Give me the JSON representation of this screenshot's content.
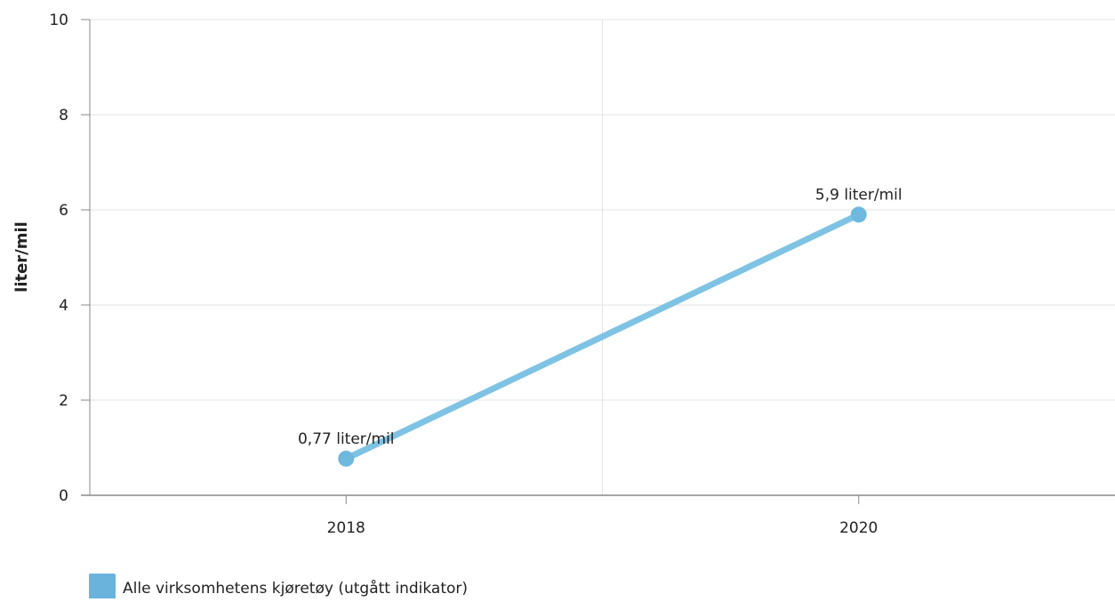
{
  "chart_data": {
    "type": "line",
    "title": "",
    "xlabel": "",
    "ylabel": "liter/mil",
    "categories": [
      "2018",
      "2020"
    ],
    "series": [
      {
        "name": "Alle virksomhetens kjøretøy (utgått indikator)",
        "values": [
          0.77,
          5.9
        ],
        "data_labels": [
          "0,77 liter/mil",
          "5,9 liter/mil"
        ],
        "color": "#7fc3e4"
      }
    ],
    "ylim": [
      0,
      10
    ],
    "yticks": [
      0,
      2,
      4,
      6,
      8,
      10
    ],
    "grid": true,
    "legend_position": "bottom-left"
  },
  "colors": {
    "series_line": "#7fc3e4",
    "marker": "#6fb8de",
    "legend_swatch": "#6ab3dc",
    "grid": "#e3e3e3",
    "axis": "#888888"
  }
}
